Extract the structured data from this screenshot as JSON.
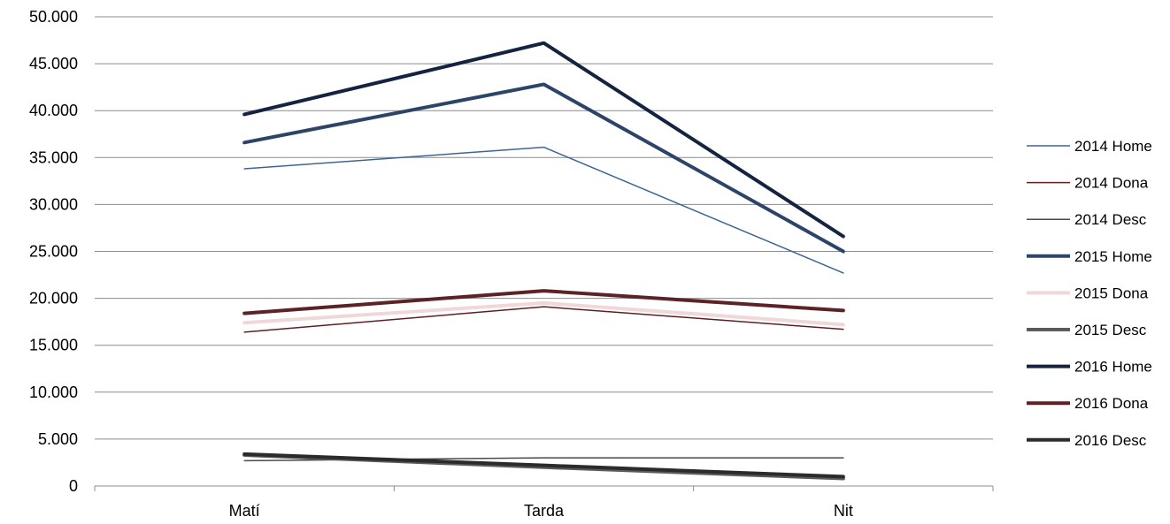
{
  "chart_data": {
    "type": "line",
    "title": "",
    "xlabel": "",
    "ylabel": "",
    "categories": [
      "Matí",
      "Tarda",
      "Nit"
    ],
    "ylim": [
      0,
      50000
    ],
    "yticks": [
      0,
      5000,
      10000,
      15000,
      20000,
      25000,
      30000,
      35000,
      40000,
      45000,
      50000
    ],
    "ytick_labels": [
      "0",
      "5.000",
      "10.000",
      "15.000",
      "20.000",
      "25.000",
      "30.000",
      "35.000",
      "40.000",
      "45.000",
      "50.000"
    ],
    "grid": true,
    "legend_position": "right",
    "series": [
      {
        "name": "2014 Home",
        "values": [
          33800,
          36100,
          22700
        ],
        "color": "#3E6592",
        "width": 1.5
      },
      {
        "name": "2014 Dona",
        "values": [
          16400,
          19100,
          16700
        ],
        "color": "#5E1E22",
        "width": 1.5
      },
      {
        "name": "2014 Desc",
        "values": [
          2700,
          3000,
          3000
        ],
        "color": "#4A4A4A",
        "width": 1.5
      },
      {
        "name": "2015 Home",
        "values": [
          36600,
          42800,
          25000
        ],
        "color": "#2B4468",
        "width": 4
      },
      {
        "name": "2015 Dona",
        "values": [
          17400,
          19500,
          17200
        ],
        "color": "#F0D8DA",
        "width": 4
      },
      {
        "name": "2015 Desc",
        "values": [
          3300,
          2000,
          800
        ],
        "color": "#5B5B5B",
        "width": 4
      },
      {
        "name": "2016 Home",
        "values": [
          39600,
          47200,
          26600
        ],
        "color": "#14233F",
        "width": 4
      },
      {
        "name": "2016 Dona",
        "values": [
          18400,
          20800,
          18700
        ],
        "color": "#5C2226",
        "width": 4
      },
      {
        "name": "2016 Desc",
        "values": [
          3400,
          2200,
          1000
        ],
        "color": "#2B2B2B",
        "width": 4
      }
    ]
  }
}
